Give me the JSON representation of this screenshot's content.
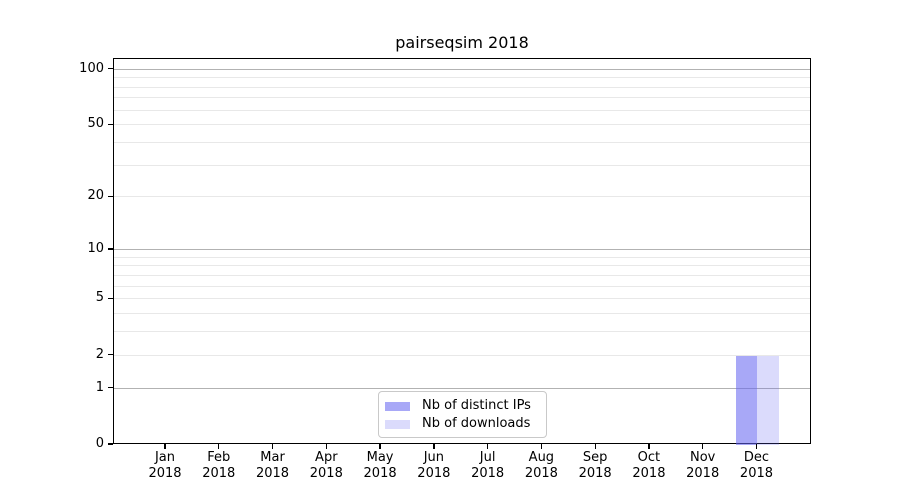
{
  "chart_data": {
    "type": "bar",
    "title": "pairseqsim 2018",
    "x": {
      "months": [
        "Jan",
        "Feb",
        "Mar",
        "Apr",
        "May",
        "Jun",
        "Jul",
        "Aug",
        "Sep",
        "Oct",
        "Nov",
        "Dec"
      ],
      "year": "2018"
    },
    "series": [
      {
        "name": "Nb of distinct IPs",
        "color": "#a8a8f7",
        "rgba": "rgba(100,100,240,0.56)",
        "values": [
          0,
          0,
          0,
          0,
          0,
          0,
          0,
          0,
          0,
          0,
          0,
          2
        ]
      },
      {
        "name": "Nb of downloads",
        "color": "#dcdcfa",
        "rgba": "rgba(100,100,240,0.23)",
        "values": [
          0,
          0,
          0,
          0,
          0,
          0,
          0,
          0,
          0,
          0,
          0,
          2
        ]
      }
    ],
    "y_axis": {
      "scale": "log1p",
      "ticks": [
        0,
        1,
        2,
        5,
        10,
        20,
        50,
        100
      ],
      "major_gridlines": [
        1,
        10,
        100
      ],
      "minor_gridlines": [
        2,
        3,
        4,
        5,
        6,
        7,
        8,
        9,
        20,
        30,
        40,
        50,
        60,
        70,
        80,
        90
      ],
      "ylim": [
        0,
        114
      ]
    },
    "legend": {
      "location": "lower center",
      "entries": [
        "Nb of distinct IPs",
        "Nb of downloads"
      ]
    },
    "grid": true,
    "colors": {
      "major_grid": "#b2b2b2",
      "minor_grid": "#e8e8e8",
      "spine": "#000000",
      "background": "#ffffff"
    }
  }
}
